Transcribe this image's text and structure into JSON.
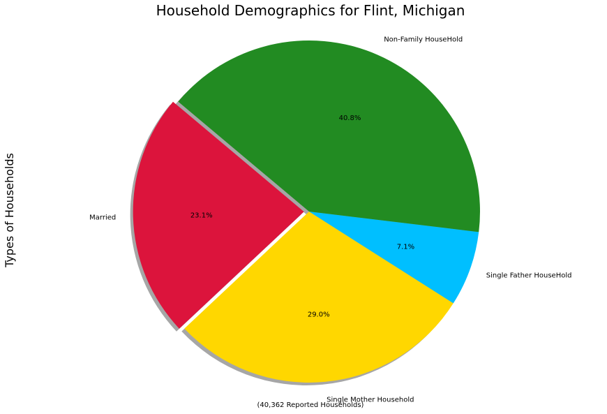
{
  "chart_data": {
    "type": "pie",
    "title": "Household Demographics for Flint, Michigan",
    "ylabel": "Types of Households",
    "xlabel": "(40,362 Reported Households)",
    "slices": [
      {
        "label": "Married",
        "pct_label": "23.1%",
        "value": 23.1,
        "color": "#DC143C",
        "explode": 0.03
      },
      {
        "label": "Single Mother Household",
        "pct_label": "29.0%",
        "value": 29.0,
        "color": "#FFD700",
        "explode": 0
      },
      {
        "label": "Single Father HouseHold",
        "pct_label": "7.1%",
        "value": 7.1,
        "color": "#00BFFF",
        "explode": 0
      },
      {
        "label": "Non-Family HouseHold",
        "pct_label": "40.8%",
        "value": 40.8,
        "color": "#228B22",
        "explode": 0
      }
    ],
    "start_angle": 140,
    "shadow": true
  }
}
